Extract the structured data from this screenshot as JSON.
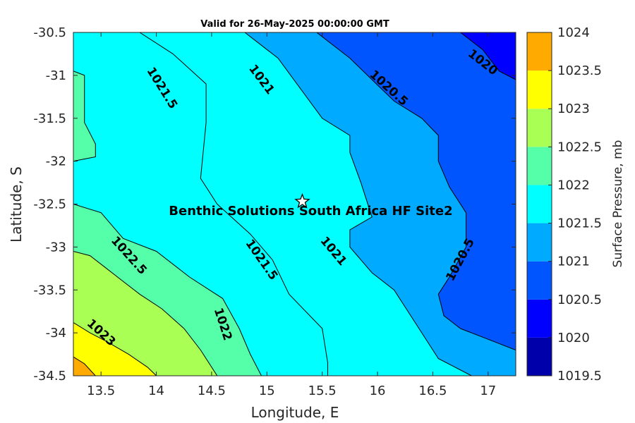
{
  "chart_data": {
    "type": "contour",
    "title": "Valid for 26-May-2025 00:00:00 GMT",
    "xlabel": "Longitude, E",
    "ylabel": "Latitude, S",
    "xlim": [
      13.25,
      17.25
    ],
    "ylim": [
      -34.5,
      -30.5
    ],
    "xticks": [
      "13.5",
      "14",
      "14.5",
      "15",
      "15.5",
      "16",
      "16.5",
      "17"
    ],
    "yticks": [
      "-30.5",
      "-31",
      "-31.5",
      "-32",
      "-32.5",
      "-33",
      "-33.5",
      "-34",
      "-34.5"
    ],
    "colorbar": {
      "label": "Surface Pressure, mb",
      "levels": [
        1019.5,
        1020,
        1020.5,
        1021,
        1021.5,
        1022,
        1022.5,
        1023,
        1023.5,
        1024
      ],
      "tick_labels": [
        "1019.5",
        "1020",
        "1020.5",
        "1021",
        "1021.5",
        "1022",
        "1022.5",
        "1023",
        "1023.5",
        "1024"
      ],
      "colors": [
        "#0000aa",
        "#0000ff",
        "#0055ff",
        "#00aaff",
        "#00ffff",
        "#55ffaa",
        "#aaff55",
        "#ffff00",
        "#ffaa00",
        "#ff5500"
      ]
    },
    "contours": [
      {
        "level": 1023.5,
        "label": "",
        "points": [
          [
            13.25,
            -34.28
          ],
          [
            13.35,
            -34.36
          ],
          [
            13.45,
            -34.5
          ]
        ]
      },
      {
        "level": 1023,
        "label": "1023",
        "points": [
          [
            13.25,
            -33.88
          ],
          [
            13.4,
            -34.0
          ],
          [
            13.55,
            -34.1
          ],
          [
            13.75,
            -34.25
          ],
          [
            13.92,
            -34.4
          ],
          [
            14.0,
            -34.5
          ]
        ]
      },
      {
        "level": 1022.5,
        "label": "1022.5",
        "points": [
          [
            13.25,
            -33.05
          ],
          [
            13.4,
            -33.1
          ],
          [
            13.55,
            -33.25
          ],
          [
            13.7,
            -33.4
          ],
          [
            13.85,
            -33.55
          ],
          [
            14.05,
            -33.72
          ],
          [
            14.25,
            -33.95
          ],
          [
            14.4,
            -34.2
          ],
          [
            14.55,
            -34.5
          ]
        ]
      },
      {
        "level": 1022,
        "label": "1022",
        "points": [
          [
            13.25,
            -32.5
          ],
          [
            13.5,
            -32.6
          ],
          [
            13.7,
            -32.9
          ],
          [
            14.0,
            -33.05
          ],
          [
            14.3,
            -33.35
          ],
          [
            14.6,
            -33.6
          ],
          [
            14.75,
            -33.95
          ],
          [
            14.85,
            -34.25
          ],
          [
            14.95,
            -34.5
          ]
        ]
      },
      {
        "level": 1021.5,
        "label": "1021.5",
        "points": [
          [
            13.25,
            -30.95
          ],
          [
            13.35,
            -31.0
          ],
          [
            13.35,
            -31.55
          ],
          [
            13.45,
            -31.8
          ],
          [
            13.45,
            -31.95
          ],
          [
            13.25,
            -32.0
          ]
        ]
      },
      {
        "level": 1021.5,
        "label": "1021.5",
        "points": [
          [
            13.85,
            -30.5
          ],
          [
            14.15,
            -30.75
          ],
          [
            14.45,
            -31.1
          ],
          [
            14.45,
            -31.55
          ],
          [
            14.4,
            -32.2
          ],
          [
            14.55,
            -32.5
          ],
          [
            14.85,
            -32.85
          ],
          [
            15.05,
            -33.15
          ],
          [
            15.2,
            -33.55
          ],
          [
            15.5,
            -33.95
          ],
          [
            15.55,
            -34.35
          ],
          [
            15.55,
            -34.5
          ]
        ]
      },
      {
        "level": 1021,
        "label": "1021",
        "points": [
          [
            14.8,
            -30.5
          ],
          [
            15.1,
            -30.8
          ],
          [
            15.3,
            -31.15
          ],
          [
            15.5,
            -31.5
          ],
          [
            15.75,
            -31.7
          ],
          [
            15.75,
            -31.9
          ],
          [
            15.85,
            -32.25
          ],
          [
            15.95,
            -32.65
          ],
          [
            15.75,
            -32.8
          ],
          [
            15.75,
            -33.0
          ],
          [
            15.95,
            -33.3
          ],
          [
            16.15,
            -33.5
          ],
          [
            16.35,
            -33.9
          ],
          [
            16.55,
            -34.3
          ],
          [
            16.85,
            -34.5
          ]
        ]
      },
      {
        "level": 1020.5,
        "label": "1020.5",
        "points": [
          [
            15.45,
            -30.5
          ],
          [
            15.75,
            -30.8
          ],
          [
            15.95,
            -31.05
          ],
          [
            16.15,
            -31.3
          ],
          [
            16.4,
            -31.5
          ],
          [
            16.55,
            -31.7
          ],
          [
            16.55,
            -32.0
          ],
          [
            16.65,
            -32.3
          ],
          [
            16.8,
            -32.6
          ],
          [
            16.8,
            -33.0
          ],
          [
            16.65,
            -33.35
          ],
          [
            16.55,
            -33.55
          ],
          [
            16.6,
            -33.8
          ],
          [
            16.75,
            -33.95
          ],
          [
            16.95,
            -34.05
          ],
          [
            17.25,
            -34.2
          ]
        ]
      },
      {
        "level": 1020,
        "label": "1020",
        "points": [
          [
            16.75,
            -30.5
          ],
          [
            16.95,
            -30.7
          ],
          [
            17.1,
            -30.95
          ],
          [
            17.25,
            -31.05
          ]
        ]
      }
    ],
    "regions": [
      {
        "level": 1020,
        "polygon": [
          [
            16.75,
            -30.5
          ],
          [
            17.25,
            -30.5
          ],
          [
            17.25,
            -31.05
          ],
          [
            17.1,
            -30.95
          ],
          [
            16.95,
            -30.7
          ]
        ]
      },
      {
        "level": 1020.5,
        "polygon": [
          [
            15.45,
            -30.5
          ],
          [
            16.75,
            -30.5
          ],
          [
            16.95,
            -30.7
          ],
          [
            17.1,
            -30.95
          ],
          [
            17.25,
            -31.05
          ],
          [
            17.25,
            -34.2
          ],
          [
            16.95,
            -34.05
          ],
          [
            16.75,
            -33.95
          ],
          [
            16.6,
            -33.8
          ],
          [
            16.55,
            -33.55
          ],
          [
            16.65,
            -33.35
          ],
          [
            16.8,
            -33.0
          ],
          [
            16.8,
            -32.6
          ],
          [
            16.65,
            -32.3
          ],
          [
            16.55,
            -32.0
          ],
          [
            16.55,
            -31.7
          ],
          [
            16.4,
            -31.5
          ],
          [
            16.15,
            -31.3
          ],
          [
            15.95,
            -31.05
          ],
          [
            15.75,
            -30.8
          ]
        ]
      },
      {
        "level": 1021,
        "polygon": [
          [
            14.8,
            -30.5
          ],
          [
            15.45,
            -30.5
          ],
          [
            15.75,
            -30.8
          ],
          [
            15.95,
            -31.05
          ],
          [
            16.15,
            -31.3
          ],
          [
            16.4,
            -31.5
          ],
          [
            16.55,
            -31.7
          ],
          [
            16.55,
            -32.0
          ],
          [
            16.65,
            -32.3
          ],
          [
            16.8,
            -32.6
          ],
          [
            16.8,
            -33.0
          ],
          [
            16.65,
            -33.35
          ],
          [
            16.55,
            -33.55
          ],
          [
            16.6,
            -33.8
          ],
          [
            16.75,
            -33.95
          ],
          [
            16.95,
            -34.05
          ],
          [
            17.25,
            -34.2
          ],
          [
            17.25,
            -34.5
          ],
          [
            16.85,
            -34.5
          ],
          [
            16.55,
            -34.3
          ],
          [
            16.35,
            -33.9
          ],
          [
            16.15,
            -33.5
          ],
          [
            15.95,
            -33.3
          ],
          [
            15.75,
            -33.0
          ],
          [
            15.75,
            -32.8
          ],
          [
            15.95,
            -32.65
          ],
          [
            15.85,
            -32.25
          ],
          [
            15.75,
            -31.9
          ],
          [
            15.75,
            -31.7
          ],
          [
            15.5,
            -31.5
          ],
          [
            15.3,
            -31.15
          ],
          [
            15.1,
            -30.8
          ]
        ]
      },
      {
        "level": 1021.5,
        "polygon": [
          [
            13.85,
            -30.5
          ],
          [
            14.8,
            -30.5
          ],
          [
            15.1,
            -30.8
          ],
          [
            15.3,
            -31.15
          ],
          [
            15.5,
            -31.5
          ],
          [
            15.75,
            -31.7
          ],
          [
            15.75,
            -31.9
          ],
          [
            15.85,
            -32.25
          ],
          [
            15.95,
            -32.65
          ],
          [
            15.75,
            -32.8
          ],
          [
            15.75,
            -33.0
          ],
          [
            15.95,
            -33.3
          ],
          [
            16.15,
            -33.5
          ],
          [
            16.35,
            -33.9
          ],
          [
            16.55,
            -34.3
          ],
          [
            16.85,
            -34.5
          ],
          [
            15.55,
            -34.5
          ],
          [
            15.55,
            -34.35
          ],
          [
            15.5,
            -33.95
          ],
          [
            15.2,
            -33.55
          ],
          [
            15.05,
            -33.15
          ],
          [
            14.85,
            -32.85
          ],
          [
            14.55,
            -32.5
          ],
          [
            14.4,
            -32.2
          ],
          [
            14.45,
            -31.55
          ],
          [
            14.45,
            -31.1
          ],
          [
            14.15,
            -30.75
          ]
        ]
      },
      {
        "level": 1021.5,
        "polygon": [
          [
            13.25,
            -30.5
          ],
          [
            13.85,
            -30.5
          ],
          [
            14.15,
            -30.75
          ],
          [
            14.45,
            -31.1
          ],
          [
            14.45,
            -31.55
          ],
          [
            14.4,
            -32.2
          ],
          [
            14.55,
            -32.5
          ],
          [
            14.85,
            -32.85
          ],
          [
            15.05,
            -33.15
          ],
          [
            15.2,
            -33.55
          ],
          [
            15.5,
            -33.95
          ],
          [
            15.55,
            -34.35
          ],
          [
            15.55,
            -34.5
          ],
          [
            14.95,
            -34.5
          ],
          [
            14.85,
            -34.25
          ],
          [
            14.75,
            -33.95
          ],
          [
            14.6,
            -33.6
          ],
          [
            14.3,
            -33.35
          ],
          [
            14.0,
            -33.05
          ],
          [
            13.7,
            -32.9
          ],
          [
            13.5,
            -32.6
          ],
          [
            13.25,
            -32.5
          ],
          [
            13.25,
            -32.0
          ],
          [
            13.45,
            -31.95
          ],
          [
            13.45,
            -31.8
          ],
          [
            13.35,
            -31.55
          ],
          [
            13.35,
            -31.0
          ],
          [
            13.25,
            -30.95
          ]
        ]
      },
      {
        "level": 1022,
        "polygon": [
          [
            13.25,
            -30.95
          ],
          [
            13.35,
            -31.0
          ],
          [
            13.35,
            -31.55
          ],
          [
            13.45,
            -31.8
          ],
          [
            13.45,
            -31.95
          ],
          [
            13.25,
            -32.0
          ]
        ]
      },
      {
        "level": 1022,
        "polygon": [
          [
            13.25,
            -32.5
          ],
          [
            13.5,
            -32.6
          ],
          [
            13.7,
            -32.9
          ],
          [
            14.0,
            -33.05
          ],
          [
            14.3,
            -33.35
          ],
          [
            14.6,
            -33.6
          ],
          [
            14.75,
            -33.95
          ],
          [
            14.85,
            -34.25
          ],
          [
            14.95,
            -34.5
          ],
          [
            14.55,
            -34.5
          ],
          [
            14.4,
            -34.2
          ],
          [
            14.25,
            -33.95
          ],
          [
            14.05,
            -33.72
          ],
          [
            13.85,
            -33.55
          ],
          [
            13.7,
            -33.4
          ],
          [
            13.55,
            -33.25
          ],
          [
            13.4,
            -33.1
          ],
          [
            13.25,
            -33.05
          ]
        ]
      },
      {
        "level": 1022.5,
        "polygon": [
          [
            13.25,
            -33.05
          ],
          [
            13.4,
            -33.1
          ],
          [
            13.55,
            -33.25
          ],
          [
            13.7,
            -33.4
          ],
          [
            13.85,
            -33.55
          ],
          [
            14.05,
            -33.72
          ],
          [
            14.25,
            -33.95
          ],
          [
            14.4,
            -34.2
          ],
          [
            14.55,
            -34.5
          ],
          [
            14.0,
            -34.5
          ],
          [
            13.92,
            -34.4
          ],
          [
            13.75,
            -34.25
          ],
          [
            13.55,
            -34.1
          ],
          [
            13.4,
            -34.0
          ],
          [
            13.25,
            -33.88
          ]
        ]
      },
      {
        "level": 1023,
        "polygon": [
          [
            13.25,
            -33.88
          ],
          [
            13.4,
            -34.0
          ],
          [
            13.55,
            -34.1
          ],
          [
            13.75,
            -34.25
          ],
          [
            13.92,
            -34.4
          ],
          [
            14.0,
            -34.5
          ],
          [
            13.45,
            -34.5
          ],
          [
            13.35,
            -34.36
          ],
          [
            13.25,
            -34.28
          ]
        ]
      },
      {
        "level": 1023.5,
        "polygon": [
          [
            13.25,
            -34.28
          ],
          [
            13.35,
            -34.36
          ],
          [
            13.45,
            -34.5
          ],
          [
            13.25,
            -34.5
          ]
        ]
      }
    ],
    "contour_labels": [
      {
        "text": "1021.5",
        "x": 14.05,
        "y": -31.15,
        "angle": 58
      },
      {
        "text": "1021",
        "x": 14.95,
        "y": -31.05,
        "angle": 53
      },
      {
        "text": "1020.5",
        "x": 16.1,
        "y": -31.15,
        "angle": 42
      },
      {
        "text": "1020",
        "x": 16.95,
        "y": -30.85,
        "angle": 38
      },
      {
        "text": "1022.5",
        "x": 13.75,
        "y": -33.1,
        "angle": 48
      },
      {
        "text": "1021.5",
        "x": 14.95,
        "y": -33.15,
        "angle": 55
      },
      {
        "text": "1021",
        "x": 15.6,
        "y": -33.05,
        "angle": 50
      },
      {
        "text": "1020.5",
        "x": 16.75,
        "y": -33.15,
        "angle": -62
      },
      {
        "text": "1023",
        "x": 13.5,
        "y": -34.0,
        "angle": 42
      },
      {
        "text": "1022",
        "x": 14.6,
        "y": -33.9,
        "angle": 72
      }
    ],
    "marker": {
      "label": "Benthic Solutions South Africa HF Site2",
      "lon": 15.32,
      "lat": -32.47,
      "symbol": "star"
    }
  }
}
